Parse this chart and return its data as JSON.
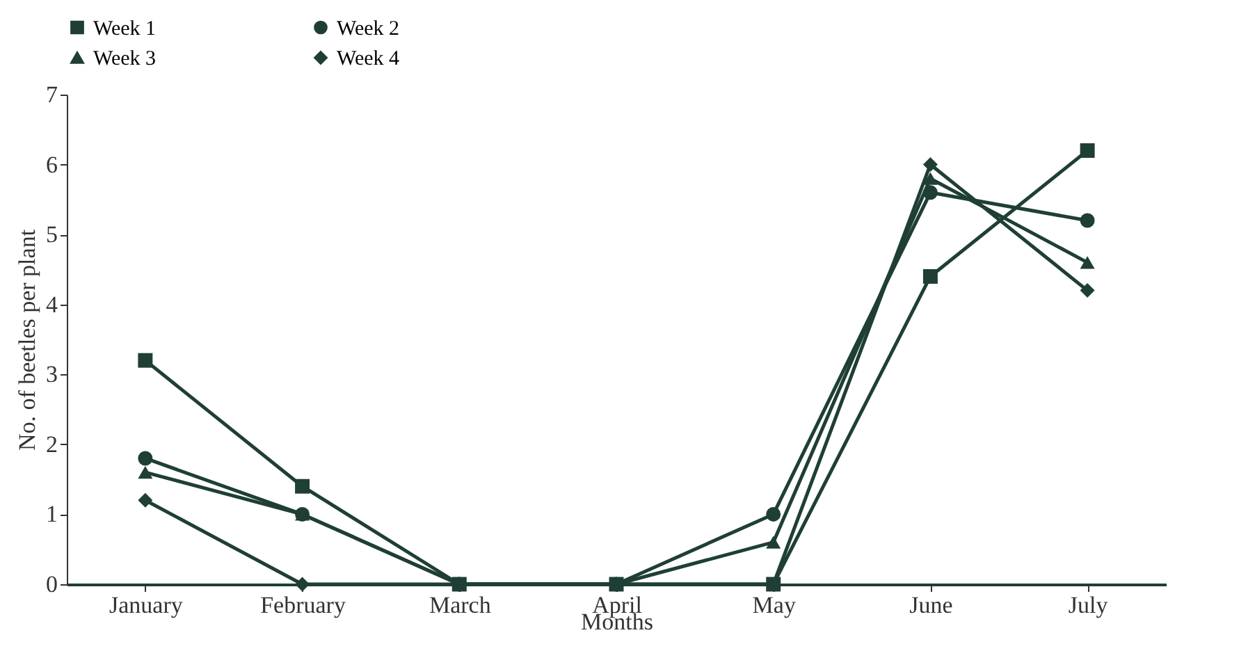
{
  "chart_data": {
    "type": "line",
    "xlabel": "Months",
    "ylabel": "No. of beetles per plant",
    "categories": [
      "January",
      "February",
      "March",
      "April",
      "May",
      "June",
      "July"
    ],
    "series": [
      {
        "name": "Week 1",
        "color": "#1f3f36",
        "marker": "square",
        "values": [
          3.2,
          1.4,
          0,
          0,
          0,
          4.4,
          6.2
        ]
      },
      {
        "name": "Week 2",
        "color": "#1f3f36",
        "marker": "circle",
        "values": [
          1.8,
          1.0,
          0,
          0,
          1.0,
          5.6,
          5.2
        ]
      },
      {
        "name": "Week 3",
        "color": "#1f3f36",
        "marker": "triangle",
        "values": [
          1.6,
          1.0,
          0,
          0,
          0.6,
          5.8,
          4.6
        ]
      },
      {
        "name": "Week 4",
        "color": "#1f3f36",
        "marker": "diamond",
        "values": [
          1.2,
          0,
          0,
          0,
          0,
          6.0,
          4.2
        ]
      }
    ],
    "ylim": [
      0,
      7
    ],
    "yticks": [
      0,
      1,
      2,
      3,
      4,
      5,
      6,
      7
    ],
    "grid": false,
    "legend": "top",
    "line_style": "solid"
  }
}
